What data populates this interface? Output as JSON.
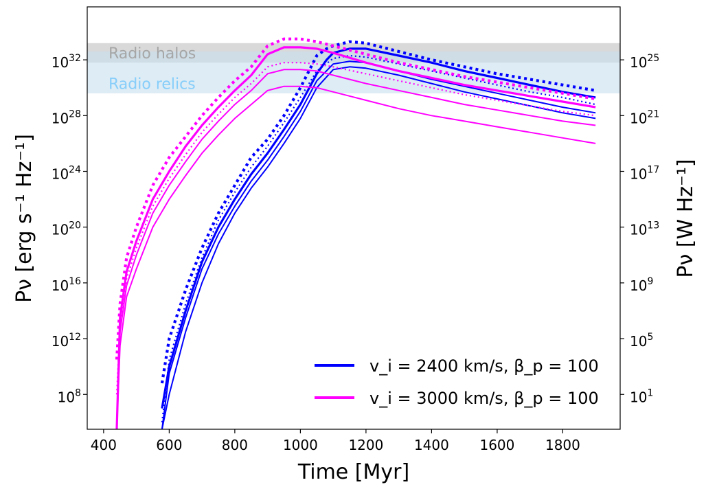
{
  "chart_data": {
    "type": "line",
    "xlabel": "Time [Myr]",
    "ylabel_left": "Pν [erg s⁻¹ Hz⁻¹]",
    "ylabel_right": "Pν [W Hz⁻¹]",
    "xlim": [
      350,
      1975
    ],
    "ylim_log10": [
      5.5,
      35.8
    ],
    "y_right_offset_log10": -7,
    "x_ticks": [
      400,
      600,
      800,
      1000,
      1200,
      1400,
      1600,
      1800
    ],
    "y_left_ticks": [
      {
        "exp": 8,
        "base": "10",
        "sup": "8"
      },
      {
        "exp": 12,
        "base": "10",
        "sup": "12"
      },
      {
        "exp": 16,
        "base": "10",
        "sup": "16"
      },
      {
        "exp": 20,
        "base": "10",
        "sup": "20"
      },
      {
        "exp": 24,
        "base": "10",
        "sup": "24"
      },
      {
        "exp": 28,
        "base": "10",
        "sup": "28"
      },
      {
        "exp": 32,
        "base": "10",
        "sup": "32"
      }
    ],
    "y_right_ticks": [
      {
        "exp": 8,
        "base": "10",
        "sup": "1"
      },
      {
        "exp": 12,
        "base": "10",
        "sup": "5"
      },
      {
        "exp": 16,
        "base": "10",
        "sup": "9"
      },
      {
        "exp": 20,
        "base": "10",
        "sup": "13"
      },
      {
        "exp": 24,
        "base": "10",
        "sup": "17"
      },
      {
        "exp": 28,
        "base": "10",
        "sup": "21"
      },
      {
        "exp": 32,
        "base": "10",
        "sup": "25"
      }
    ],
    "bands": [
      {
        "name": "Radio halos",
        "ymin_log10": 31.8,
        "ymax_log10": 33.2,
        "color": "#bfbfbf",
        "text_color": "#a6a6a6",
        "label_log10": 32.5
      },
      {
        "name": "Radio relics",
        "ymin_log10": 29.6,
        "ymax_log10": 32.6,
        "color": "#c6e0ee",
        "text_color": "#87cefa",
        "label_log10": 30.3
      }
    ],
    "legend": [
      {
        "label": "v_i = 2400 km/s, β_p = 100",
        "color": "#0000ff"
      },
      {
        "label": "v_i = 3000 km/s, β_p = 100",
        "color": "#ff00ff"
      }
    ],
    "series": [
      {
        "name": "2400 dotted thick",
        "color": "#0000ff",
        "style": "dotted-thick",
        "x": [
          578,
          600,
          650,
          700,
          750,
          800,
          850,
          900,
          950,
          1000,
          1050,
          1080,
          1100,
          1150,
          1200,
          1300,
          1400,
          1500,
          1600,
          1700,
          1800,
          1900
        ],
        "y": [
          8.8,
          12.0,
          15.5,
          18.5,
          21.0,
          23.0,
          25.0,
          26.3,
          28.0,
          30.0,
          32.3,
          32.8,
          33.0,
          33.3,
          33.2,
          32.6,
          32.0,
          31.5,
          31.0,
          30.6,
          30.2,
          29.8
        ]
      },
      {
        "name": "2400 solid thick",
        "color": "#0000ff",
        "style": "solid-thick",
        "x": [
          578,
          600,
          650,
          700,
          750,
          800,
          850,
          900,
          950,
          1000,
          1050,
          1080,
          1100,
          1150,
          1200,
          1300,
          1400,
          1500,
          1600,
          1700,
          1800,
          1900
        ],
        "y": [
          7.0,
          10.0,
          14.0,
          17.5,
          20.0,
          22.0,
          23.8,
          25.3,
          27.0,
          28.8,
          31.0,
          32.0,
          32.5,
          32.8,
          32.8,
          32.3,
          31.8,
          31.2,
          30.7,
          30.2,
          29.7,
          29.3
        ]
      },
      {
        "name": "2400 dotted thin",
        "color": "#0000ff",
        "style": "dotted-thin",
        "x": [
          578,
          600,
          650,
          700,
          750,
          800,
          850,
          900,
          950,
          1000,
          1050,
          1100,
          1150,
          1200,
          1300,
          1400,
          1500,
          1600,
          1700,
          1800,
          1900
        ],
        "y": [
          6.0,
          10.5,
          14.5,
          17.8,
          20.5,
          22.5,
          24.3,
          25.8,
          27.5,
          29.3,
          31.2,
          32.1,
          32.3,
          32.2,
          31.7,
          31.2,
          30.7,
          30.2,
          29.7,
          29.3,
          28.8
        ]
      },
      {
        "name": "2400 solid thin a",
        "color": "#0000ff",
        "style": "solid-thin",
        "x": [
          578,
          600,
          650,
          700,
          750,
          800,
          850,
          900,
          950,
          1000,
          1050,
          1100,
          1150,
          1200,
          1300,
          1400,
          1500,
          1600,
          1700,
          1800,
          1900
        ],
        "y": [
          5.5,
          9.5,
          13.5,
          17.0,
          19.5,
          21.5,
          23.3,
          24.8,
          26.5,
          28.3,
          30.5,
          31.7,
          31.9,
          31.8,
          31.2,
          30.6,
          30.1,
          29.6,
          29.1,
          28.6,
          28.2
        ]
      },
      {
        "name": "2400 solid thin b",
        "color": "#0000ff",
        "style": "solid-thin",
        "x": [
          578,
          600,
          650,
          700,
          750,
          800,
          850,
          900,
          950,
          1000,
          1050,
          1100,
          1150,
          1200,
          1300,
          1400,
          1500,
          1600,
          1700,
          1800,
          1900
        ],
        "y": [
          5.5,
          8.0,
          12.5,
          16.0,
          18.8,
          21.0,
          22.8,
          24.3,
          26.0,
          27.8,
          30.0,
          31.3,
          31.5,
          31.4,
          30.9,
          30.3,
          29.7,
          29.2,
          28.7,
          28.2,
          27.8
        ]
      },
      {
        "name": "3000 dotted thick",
        "color": "#ff00ff",
        "style": "dotted-thick",
        "x": [
          440,
          450,
          470,
          500,
          550,
          600,
          650,
          700,
          750,
          800,
          850,
          900,
          950,
          1000,
          1050,
          1100,
          1200,
          1300,
          1400,
          1500,
          1600,
          1700,
          1800,
          1900
        ],
        "y": [
          10.5,
          14.5,
          17.8,
          20.0,
          23.0,
          25.0,
          26.5,
          28.0,
          29.3,
          30.5,
          31.5,
          33.0,
          33.5,
          33.5,
          33.3,
          33.0,
          32.4,
          31.8,
          31.3,
          30.8,
          30.4,
          30.0,
          29.6,
          29.2
        ]
      },
      {
        "name": "3000 solid thick",
        "color": "#ff00ff",
        "style": "solid-thick",
        "x": [
          440,
          450,
          470,
          500,
          550,
          600,
          650,
          700,
          750,
          800,
          850,
          900,
          950,
          1000,
          1050,
          1100,
          1200,
          1300,
          1400,
          1500,
          1600,
          1700,
          1800,
          1900
        ],
        "y": [
          5.5,
          13.5,
          16.8,
          19.0,
          22.0,
          24.0,
          25.8,
          27.3,
          28.6,
          29.8,
          30.9,
          32.4,
          32.9,
          32.9,
          32.8,
          32.5,
          31.8,
          31.2,
          30.7,
          30.2,
          29.8,
          29.4,
          29.0,
          28.6
        ]
      },
      {
        "name": "3000 dotted thin",
        "color": "#ff00ff",
        "style": "dotted-thin",
        "x": [
          440,
          450,
          470,
          500,
          550,
          600,
          650,
          700,
          750,
          800,
          850,
          900,
          950,
          1000,
          1050,
          1100,
          1200,
          1300,
          1400,
          1500,
          1600,
          1700,
          1800,
          1900
        ],
        "y": [
          8.0,
          13.0,
          16.3,
          18.5,
          21.5,
          23.5,
          25.2,
          26.8,
          28.1,
          29.3,
          30.3,
          31.5,
          31.8,
          31.8,
          31.7,
          31.5,
          31.0,
          30.5,
          30.0,
          29.5,
          29.1,
          28.7,
          28.3,
          28.0
        ]
      },
      {
        "name": "3000 solid thin a",
        "color": "#ff00ff",
        "style": "solid-thin",
        "x": [
          440,
          450,
          470,
          500,
          550,
          600,
          650,
          700,
          750,
          800,
          850,
          900,
          950,
          1000,
          1050,
          1100,
          1200,
          1300,
          1400,
          1500,
          1600,
          1700,
          1800,
          1900
        ],
        "y": [
          5.5,
          12.5,
          15.8,
          18.0,
          21.0,
          23.0,
          24.7,
          26.3,
          27.6,
          28.8,
          29.8,
          31.0,
          31.3,
          31.3,
          31.2,
          30.9,
          30.3,
          29.8,
          29.3,
          28.8,
          28.4,
          28.0,
          27.6,
          27.3
        ]
      },
      {
        "name": "3000 solid thin b",
        "color": "#ff00ff",
        "style": "solid-thin",
        "x": [
          440,
          450,
          470,
          500,
          550,
          600,
          650,
          700,
          750,
          800,
          850,
          900,
          950,
          1000,
          1050,
          1100,
          1200,
          1300,
          1400,
          1500,
          1600,
          1700,
          1800,
          1900
        ],
        "y": [
          5.5,
          11.5,
          15.0,
          17.0,
          20.0,
          22.0,
          23.7,
          25.3,
          26.6,
          27.8,
          28.8,
          29.8,
          30.1,
          30.1,
          30.0,
          29.7,
          29.1,
          28.5,
          28.0,
          27.6,
          27.2,
          26.8,
          26.4,
          26.0
        ]
      }
    ]
  }
}
